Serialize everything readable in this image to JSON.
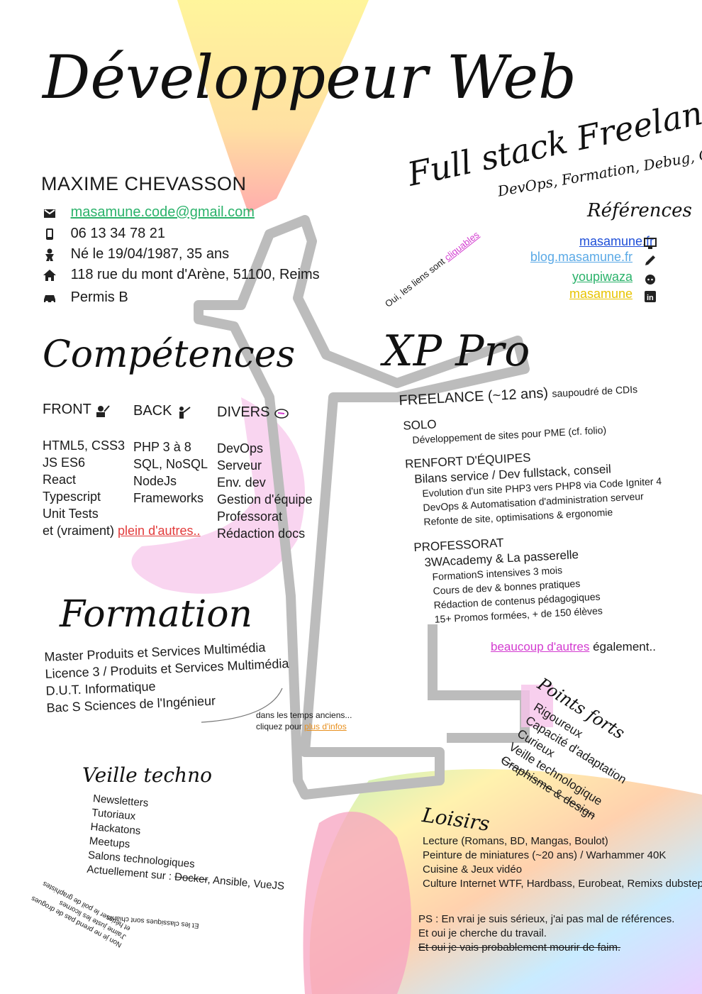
{
  "title": "Développeur Web",
  "subtitle": "Full stack Freelance",
  "tagline": "DevOps, Formation, Debug, Cafe",
  "name": "MAXIME CHEVASSON",
  "contact": {
    "email": "masamune.code@gmail.com",
    "phone": "06 13 34 78 21",
    "birth": "Né le 19/04/1987, 35 ans",
    "address": "118 rue du mont d'Arène, 51100, Reims",
    "license": "Permis B"
  },
  "links_note": {
    "prefix": "Oui, les liens sont ",
    "link": "cliquables"
  },
  "references": {
    "heading": "Références",
    "items": [
      {
        "label": "masamune.fr",
        "color": "#1f4fd8",
        "icon": "monitor-icon"
      },
      {
        "label": "blog.masamune.fr",
        "color": "#5aa9e6",
        "icon": "pencil-icon"
      },
      {
        "label": "youpiwaza",
        "color": "#2ab26a",
        "icon": "github-icon"
      },
      {
        "label": "masamune",
        "color": "#e8c400",
        "icon": "linkedin-icon"
      }
    ]
  },
  "competences": {
    "heading": "Compétences",
    "columns": [
      {
        "title": "FRONT",
        "items": [
          "HTML5, CSS3",
          "JS ES6",
          "React",
          "Typescript",
          "Unit Tests"
        ]
      },
      {
        "title": "BACK",
        "items": [
          "PHP 3 à 8",
          "SQL, NoSQL",
          "NodeJs",
          "Frameworks"
        ]
      },
      {
        "title": "DIVERS",
        "items": [
          "DevOps",
          "Serveur",
          "Env. dev",
          "Gestion d'équipe",
          "Professorat",
          "Rédaction docs"
        ]
      }
    ],
    "more_prefix": "et (vraiment) ",
    "more_link": "plein d'autres.."
  },
  "formation": {
    "heading": "Formation",
    "items": [
      "Master Produits et Services Multimédia",
      "Licence 3 / Produits et Services Multimédia",
      "D.U.T. Informatique",
      "Bac S Sciences de l'Ingénieur"
    ],
    "note_line1": "dans les temps anciens...",
    "note_prefix": "cliquez pour ",
    "note_link": "plus d'infos"
  },
  "xp": {
    "heading": "XP Pro",
    "freelance": "FREELANCE (~12 ans)",
    "freelance_suffix": "saupoudré de CDIs",
    "solo_title": "SOLO",
    "solo_desc": "Développement de sites pour PME (cf. folio)",
    "renfort_title": "RENFORT D'ÉQUIPES",
    "renfort_sub": "Bilans service / Dev fullstack, conseil",
    "renfort_items": [
      "Evolution d'un site PHP3 vers PHP8 via Code Igniter 4",
      "DevOps & Automatisation d'administration serveur",
      "Refonte de site, optimisations & ergonomie"
    ],
    "prof_title": "PROFESSORAT",
    "prof_sub": "3WAcademy & La passerelle",
    "prof_items": [
      "FormationS intensives 3 mois",
      "Cours de dev & bonnes pratiques",
      "Rédaction de contenus pédagogiques",
      "15+ Promos formées, + de 150 élèves"
    ],
    "more_link": "beaucoup d'autres",
    "more_suffix": " également.."
  },
  "points_forts": {
    "heading": "Points forts",
    "items": [
      "Rigoureux",
      "Capacité d'adaptation",
      "Curieux",
      "Veille technologique"
    ],
    "struck": "Graphisme & design"
  },
  "veille": {
    "heading": "Veille techno",
    "items": [
      "Newsletters",
      "Tutoriaux",
      "Hackatons",
      "Meetups",
      "Salons technologiques"
    ],
    "current_prefix": "Actuellement sur : ",
    "current_struck": "Docker",
    "current_suffix": ", Ansible, VueJS"
  },
  "jokes": {
    "upside1": "Et les classiques sont chiants",
    "upside2": "Non je ne prend pas de drogues",
    "upside3": "J'aime juste les licornes",
    "upside4": "et hérisser le poil de graphistes"
  },
  "loisirs": {
    "heading": "Loisirs",
    "items": [
      "Lecture (Romans, BD, Mangas, Boulot)",
      "Peinture de miniatures (~20 ans) / Warhammer 40K",
      "Cuisine & Jeux vidéo",
      "Culture Internet WTF, Hardbass, Eurobeat, Remixs dubstep"
    ]
  },
  "ps": {
    "line1": "PS : En vrai je suis sérieux, j'ai pas mal de références.",
    "line2": "Et oui je cherche du travail.",
    "line3": "Et oui je vais probablement mourir de faim."
  },
  "colors": {
    "email": "#2ab26a",
    "link_red": "#e23b3b",
    "link_pink": "#d33bd0",
    "link_orange": "#e8901e"
  }
}
